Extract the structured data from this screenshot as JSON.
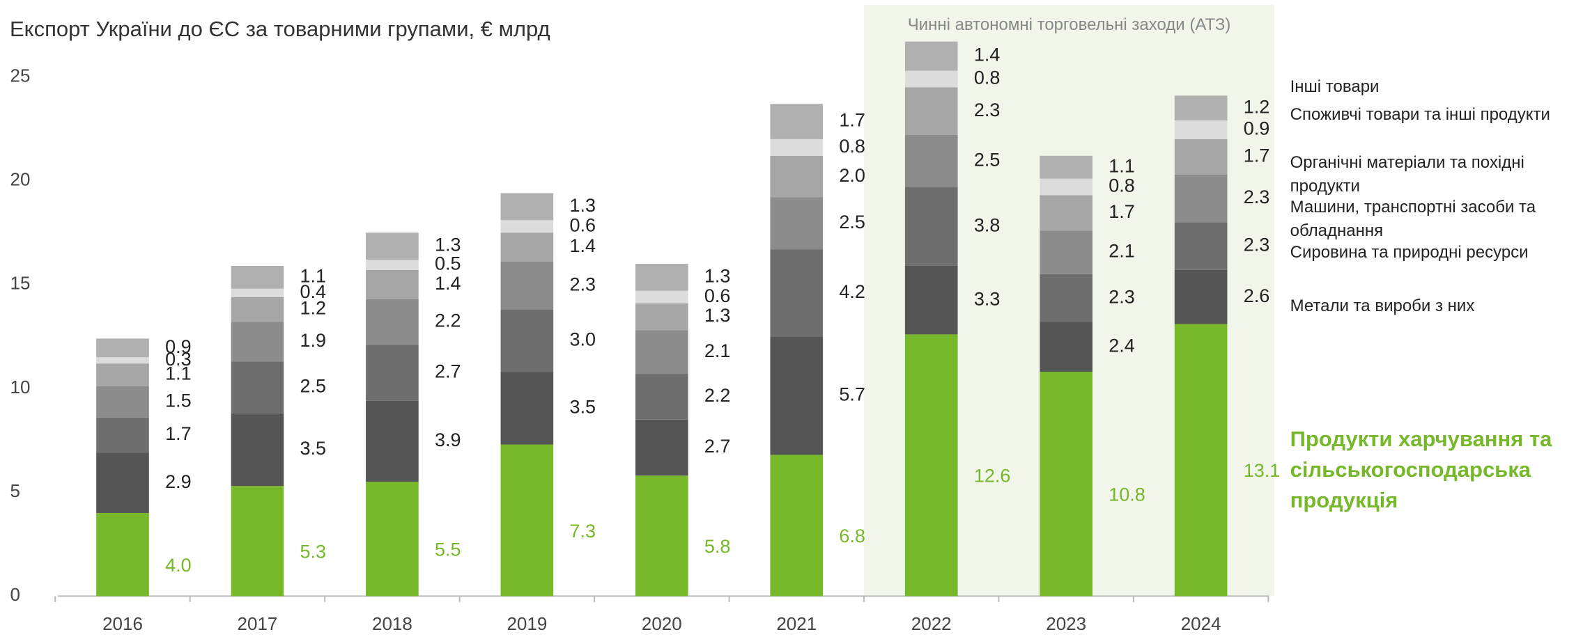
{
  "chart_data": {
    "type": "stacked_bar",
    "title": "Експорт України до ЄС за товарними групами, € млрд",
    "annotation": "Чинні автономні торговельні заходи (АТЗ)",
    "categories": [
      "2016",
      "2017",
      "2018",
      "2019",
      "2020",
      "2021",
      "2022",
      "2023",
      "2024"
    ],
    "highlight_categories": [
      "2022",
      "2023",
      "2024"
    ],
    "series": [
      {
        "name": "Продукти харчування та сільськогосподарська продукція",
        "color": "#76b82a",
        "values": [
          4.0,
          5.3,
          5.5,
          7.3,
          5.8,
          6.8,
          12.6,
          10.8,
          13.1
        ],
        "value_labels": [
          "4.0",
          "5.3",
          "5.5",
          "7.3",
          "5.8",
          "6.8",
          "12.6",
          "10.8",
          "13.1"
        ]
      },
      {
        "name": "Метали та вироби з них",
        "color": "#555555",
        "values": [
          2.9,
          3.5,
          3.9,
          3.5,
          2.7,
          5.7,
          3.3,
          2.4,
          2.6
        ],
        "value_labels": [
          "2.9",
          "3.5",
          "3.9",
          "3.5",
          "2.7",
          "5.7",
          "3.3",
          "2.4",
          "2.6"
        ]
      },
      {
        "name": "Сировина та природні ресурси",
        "color": "#6e6e6e",
        "values": [
          1.7,
          2.5,
          2.7,
          3.0,
          2.2,
          4.2,
          3.8,
          2.3,
          2.3
        ],
        "value_labels": [
          "1.7",
          "2.5",
          "2.7",
          "3.0",
          "2.2",
          "4.2",
          "3.8",
          "2.3",
          "2.3"
        ]
      },
      {
        "name": "Машини, транспортні засоби та обладнання",
        "color": "#8c8c8c",
        "values": [
          1.5,
          1.9,
          2.2,
          2.3,
          2.1,
          2.5,
          2.5,
          2.1,
          2.3
        ],
        "value_labels": [
          "1.5",
          "1.9",
          "2.2",
          "2.3",
          "2.1",
          "2.5",
          "2.5",
          "2.1",
          "2.3"
        ]
      },
      {
        "name": "Органічні матеріали та похідні продукти",
        "color": "#a6a6a6",
        "values": [
          1.1,
          1.2,
          1.4,
          1.4,
          1.3,
          2.0,
          2.3,
          1.7,
          1.7
        ],
        "value_labels": [
          "1.1",
          "1.2",
          "1.4",
          "1.4",
          "1.3",
          "2.0",
          "2.3",
          "1.7",
          "1.7"
        ]
      },
      {
        "name": "Споживчі товари та інші продукти",
        "color": "#dcdcdc",
        "values": [
          0.3,
          0.4,
          0.5,
          0.6,
          0.6,
          0.8,
          0.8,
          0.8,
          0.9
        ],
        "value_labels": [
          "0.3",
          "0.4",
          "0.5",
          "0.6",
          "0.6",
          "0.8",
          "0.8",
          "0.8",
          "0.9"
        ]
      },
      {
        "name": "Інші товари",
        "color": "#b0b0b0",
        "values": [
          0.9,
          1.1,
          1.3,
          1.3,
          1.3,
          1.7,
          1.4,
          1.1,
          1.2
        ],
        "value_labels": [
          "0.9",
          "1.1",
          "1.3",
          "1.3",
          "1.3",
          "1.7",
          "1.4",
          "1.1",
          "1.2"
        ]
      }
    ],
    "ylim": [
      0,
      25
    ],
    "yticks": [
      0,
      5,
      10,
      15,
      20,
      25
    ],
    "grid": false
  }
}
